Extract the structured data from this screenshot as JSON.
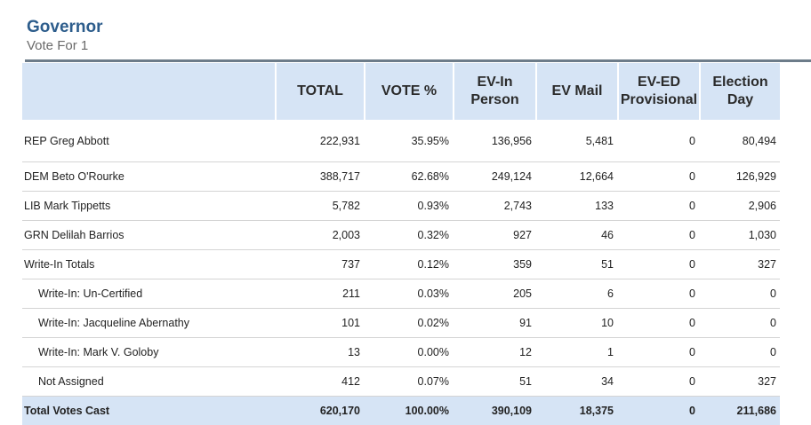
{
  "race": {
    "title": "Governor",
    "subtitle": "Vote For 1"
  },
  "columns": {
    "candidate": "",
    "total": "TOTAL",
    "vote_pct": "VOTE %",
    "ev_in_person_line1": "EV-In",
    "ev_in_person_line2": "Person",
    "ev_mail": "EV Mail",
    "ev_ed_provisional_line1": "EV-ED",
    "ev_ed_provisional_line2": "Provisional",
    "election_day_line1": "Election",
    "election_day_line2": "Day"
  },
  "rows": [
    {
      "name": "REP Greg Abbott",
      "total": "222,931",
      "pct": "35.95%",
      "ev_in_person": "136,956",
      "ev_mail": "5,481",
      "ev_ed_provisional": "0",
      "election_day": "80,494"
    },
    {
      "name": "DEM Beto O'Rourke",
      "total": "388,717",
      "pct": "62.68%",
      "ev_in_person": "249,124",
      "ev_mail": "12,664",
      "ev_ed_provisional": "0",
      "election_day": "126,929"
    },
    {
      "name": "LIB Mark Tippetts",
      "total": "5,782",
      "pct": "0.93%",
      "ev_in_person": "2,743",
      "ev_mail": "133",
      "ev_ed_provisional": "0",
      "election_day": "2,906"
    },
    {
      "name": "GRN Delilah Barrios",
      "total": "2,003",
      "pct": "0.32%",
      "ev_in_person": "927",
      "ev_mail": "46",
      "ev_ed_provisional": "0",
      "election_day": "1,030"
    },
    {
      "name": "Write-In Totals",
      "total": "737",
      "pct": "0.12%",
      "ev_in_person": "359",
      "ev_mail": "51",
      "ev_ed_provisional": "0",
      "election_day": "327"
    },
    {
      "name": "Write-In: Un-Certified",
      "total": "211",
      "pct": "0.03%",
      "ev_in_person": "205",
      "ev_mail": "6",
      "ev_ed_provisional": "0",
      "election_day": "0"
    },
    {
      "name": "Write-In: Jacqueline Abernathy",
      "total": "101",
      "pct": "0.02%",
      "ev_in_person": "91",
      "ev_mail": "10",
      "ev_ed_provisional": "0",
      "election_day": "0"
    },
    {
      "name": "Write-In: Mark V. Goloby",
      "total": "13",
      "pct": "0.00%",
      "ev_in_person": "12",
      "ev_mail": "1",
      "ev_ed_provisional": "0",
      "election_day": "0"
    },
    {
      "name": "Not Assigned",
      "total": "412",
      "pct": "0.07%",
      "ev_in_person": "51",
      "ev_mail": "34",
      "ev_ed_provisional": "0",
      "election_day": "327"
    }
  ],
  "totals": {
    "name": "Total Votes Cast",
    "total": "620,170",
    "pct": "100.00%",
    "ev_in_person": "390,109",
    "ev_mail": "18,375",
    "ev_ed_provisional": "0",
    "election_day": "211,686"
  },
  "colors": {
    "title": "#2d5d8c",
    "header_bg": "#d6e4f5",
    "rule": "#6d7c8a"
  }
}
